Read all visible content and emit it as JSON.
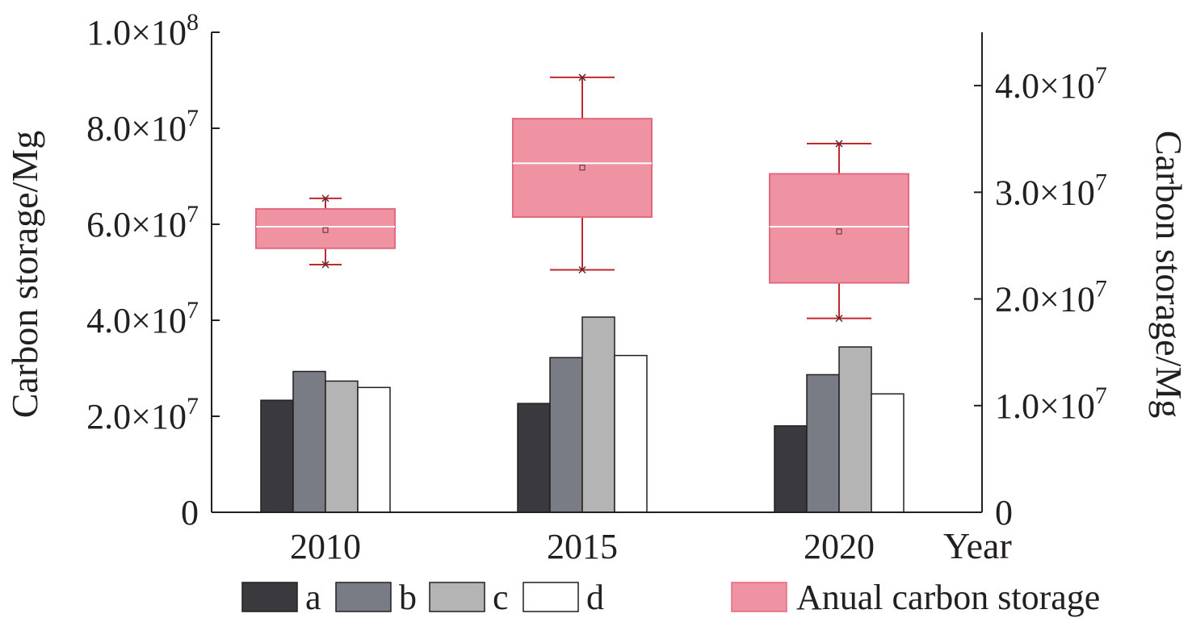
{
  "chart_data": {
    "type": "bar",
    "categories": [
      "2010",
      "2015",
      "2020"
    ],
    "xlabel": "Year",
    "left_axis": {
      "label": "Carbon storage/Mg",
      "range": [
        0,
        100000000
      ],
      "ticks": [
        0,
        20000000,
        40000000,
        60000000,
        80000000,
        100000000
      ],
      "tick_labels": [
        {
          "main": "0",
          "sup": ""
        },
        {
          "main": "2.0×10",
          "sup": "7"
        },
        {
          "main": "4.0×10",
          "sup": "7"
        },
        {
          "main": "6.0×10",
          "sup": "7"
        },
        {
          "main": "8.0×10",
          "sup": "7"
        },
        {
          "main": "1.0×10",
          "sup": "8"
        }
      ]
    },
    "right_axis": {
      "label": "Carbon storage/Mg",
      "range": [
        0,
        45000000
      ],
      "ticks": [
        0,
        10000000,
        20000000,
        30000000,
        40000000
      ],
      "tick_labels": [
        {
          "main": "0",
          "sup": ""
        },
        {
          "main": "1.0×10",
          "sup": "7"
        },
        {
          "main": "2.0×10",
          "sup": "7"
        },
        {
          "main": "3.0×10",
          "sup": "7"
        },
        {
          "main": "4.0×10",
          "sup": "7"
        }
      ]
    },
    "series": [
      {
        "name": "a",
        "color": "#3a3a3e",
        "values": [
          10500000,
          10200000,
          8100000
        ]
      },
      {
        "name": "b",
        "color": "#797c84",
        "values": [
          13200000,
          14500000,
          12900000
        ]
      },
      {
        "name": "c",
        "color": "#b4b4b4",
        "values": [
          12300000,
          18300000,
          15500000
        ]
      },
      {
        "name": "d",
        "color": "#ffffff",
        "values": [
          11700000,
          14700000,
          11100000
        ]
      }
    ],
    "boxplot": {
      "name": "Anual carbon storage",
      "axis": "left",
      "color": "#ef93a3",
      "border_color": "#e06a80",
      "whisker_color": "#c0282d",
      "boxes": [
        {
          "category": "2010",
          "min": 51600000,
          "q1": 55000000,
          "median": 59500000,
          "mean": 58800000,
          "q3": 63200000,
          "max": 65400000
        },
        {
          "category": "2015",
          "min": 50500000,
          "q1": 61500000,
          "median": 72700000,
          "mean": 71800000,
          "q3": 82000000,
          "max": 90600000
        },
        {
          "category": "2020",
          "min": 40400000,
          "q1": 47800000,
          "median": 59500000,
          "mean": 58500000,
          "q3": 70500000,
          "max": 76800000
        }
      ]
    },
    "legend": {
      "placement": "bottom"
    }
  }
}
